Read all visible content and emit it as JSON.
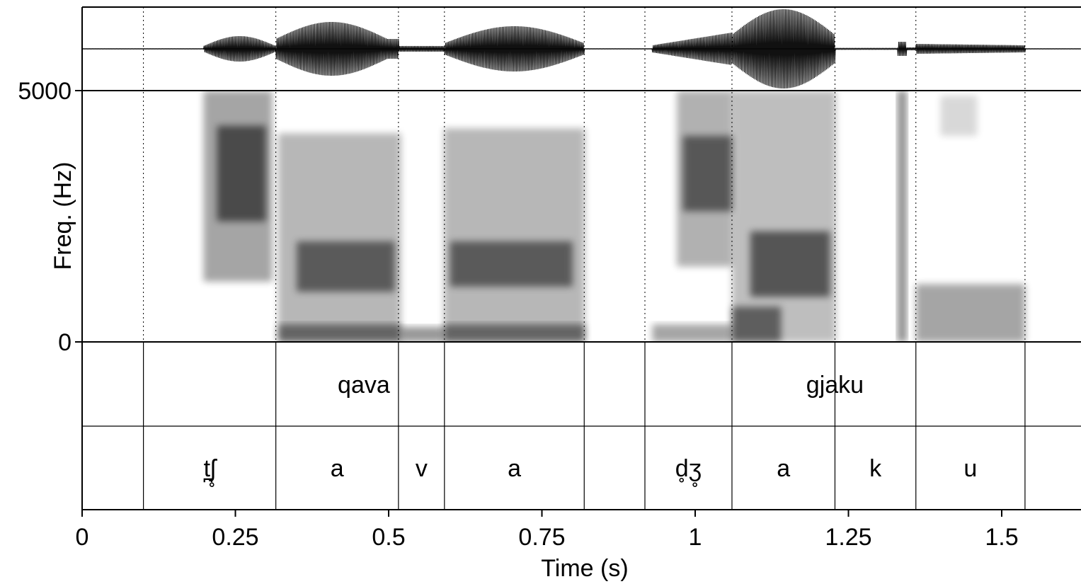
{
  "chart_data": {
    "type": "spectrogram",
    "panels": [
      "waveform",
      "spectrogram",
      "word-tier",
      "segment-tier"
    ],
    "xlabel": "Time (s)",
    "ylabel": "Freq. (Hz)",
    "xlim": [
      0,
      1.63
    ],
    "ylim": [
      0,
      5000
    ],
    "x_ticks": [
      {
        "value": 0,
        "label": "0"
      },
      {
        "value": 0.25,
        "label": "0.25"
      },
      {
        "value": 0.5,
        "label": "0.5"
      },
      {
        "value": 0.75,
        "label": "0.75"
      },
      {
        "value": 1,
        "label": "1"
      },
      {
        "value": 1.25,
        "label": "1.25"
      },
      {
        "value": 1.5,
        "label": "1.5"
      }
    ],
    "y_ticks": [
      {
        "value": 5000,
        "label": "5000"
      },
      {
        "value": 0,
        "label": "0"
      }
    ],
    "boundaries": [
      0.1,
      0.316,
      0.516,
      0.591,
      0.819,
      0.918,
      1.06,
      1.228,
      1.36,
      1.538
    ],
    "words": [
      {
        "label": "qava",
        "start": 0.1,
        "end": 0.819
      },
      {
        "label": "gjaku",
        "start": 0.918,
        "end": 1.538
      }
    ],
    "segments": [
      {
        "label": "t̪ʃ̥",
        "start": 0.1,
        "end": 0.316
      },
      {
        "label": "a",
        "start": 0.316,
        "end": 0.516
      },
      {
        "label": "v",
        "start": 0.516,
        "end": 0.591
      },
      {
        "label": "a",
        "start": 0.591,
        "end": 0.819
      },
      {
        "label": "d̥ʒ̥",
        "start": 0.918,
        "end": 1.06
      },
      {
        "label": "a",
        "start": 1.06,
        "end": 1.228
      },
      {
        "label": "k",
        "start": 1.228,
        "end": 1.36
      },
      {
        "label": "u",
        "start": 1.36,
        "end": 1.538
      }
    ],
    "grid": false,
    "colormap": "grayscale"
  }
}
